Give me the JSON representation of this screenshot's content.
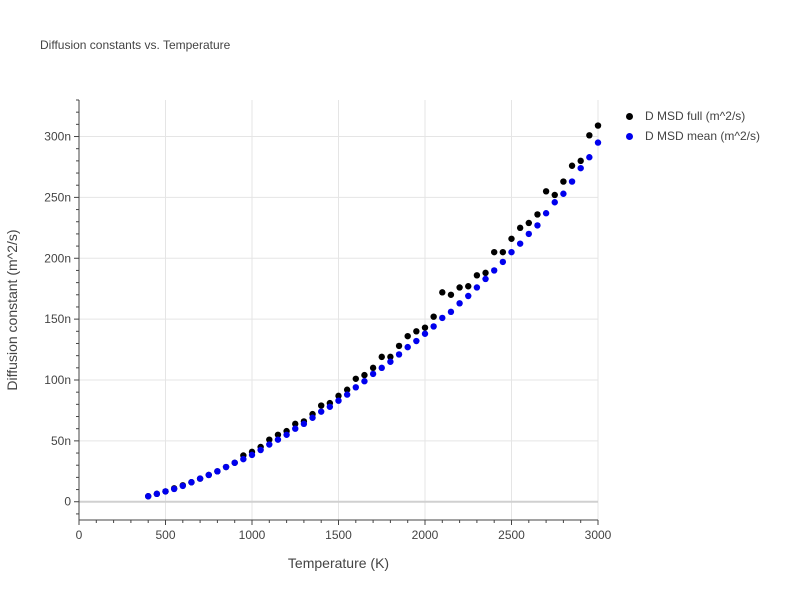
{
  "chart_data": {
    "type": "scatter",
    "title": "Diffusion constants vs. Temperature",
    "xlabel": "Temperature (K)",
    "ylabel": "Diffusion constant (m^2/s)",
    "xlim": [
      0,
      3000
    ],
    "ylim": [
      -15,
      330
    ],
    "x_ticks": [
      0,
      500,
      1000,
      1500,
      2000,
      2500,
      3000
    ],
    "y_ticks": [
      0,
      50,
      100,
      150,
      200,
      250,
      300
    ],
    "y_tick_labels": [
      "0",
      "50n",
      "100n",
      "150n",
      "200n",
      "250n",
      "300n"
    ],
    "y_unit": "n (1e-9)",
    "grid": true,
    "legend_position": "top-right outside",
    "series": [
      {
        "name": "D MSD full (m^2/s)",
        "color": "#000000",
        "x": [
          400,
          450,
          500,
          550,
          600,
          650,
          700,
          750,
          800,
          850,
          900,
          950,
          1000,
          1050,
          1100,
          1150,
          1200,
          1250,
          1300,
          1350,
          1400,
          1450,
          1500,
          1550,
          1600,
          1650,
          1700,
          1750,
          1800,
          1850,
          1900,
          1950,
          2000,
          2050,
          2100,
          2150,
          2200,
          2250,
          2300,
          2350,
          2400,
          2450,
          2500,
          2550,
          2600,
          2650,
          2700,
          2750,
          2800,
          2850,
          2900,
          2950,
          3000
        ],
        "y": [
          4.5,
          6.5,
          8.5,
          11,
          13.5,
          16,
          19,
          22,
          25,
          28.5,
          32,
          38,
          41,
          45,
          51,
          55,
          58,
          64,
          66,
          72,
          79,
          81,
          87,
          92,
          101,
          104,
          110,
          119,
          119,
          128,
          136,
          140,
          143,
          152,
          172,
          170,
          176,
          177,
          186,
          188,
          205,
          205,
          216,
          225,
          229,
          236,
          255,
          252,
          263,
          276,
          280,
          301,
          309
        ]
      },
      {
        "name": "D MSD mean (m^2/s)",
        "color": "#0000ee",
        "x": [
          400,
          450,
          500,
          550,
          600,
          650,
          700,
          750,
          800,
          850,
          900,
          950,
          1000,
          1050,
          1100,
          1150,
          1200,
          1250,
          1300,
          1350,
          1400,
          1450,
          1500,
          1550,
          1600,
          1650,
          1700,
          1750,
          1800,
          1850,
          1900,
          1950,
          2000,
          2050,
          2100,
          2150,
          2200,
          2250,
          2300,
          2350,
          2400,
          2450,
          2500,
          2550,
          2600,
          2650,
          2700,
          2750,
          2800,
          2850,
          2900,
          2950,
          3000
        ],
        "y": [
          4.5,
          6.5,
          8.5,
          10.5,
          13,
          16,
          19,
          22,
          25,
          28.5,
          32,
          35,
          38.5,
          42.5,
          47,
          51,
          55,
          60,
          64,
          69,
          74,
          78,
          83,
          88,
          94,
          99,
          105,
          110,
          115,
          121,
          127,
          132,
          138,
          144,
          151,
          156,
          163,
          169,
          176,
          183,
          190,
          197,
          205,
          212,
          220,
          227,
          237,
          246,
          253,
          263,
          274,
          283,
          295
        ]
      }
    ]
  }
}
